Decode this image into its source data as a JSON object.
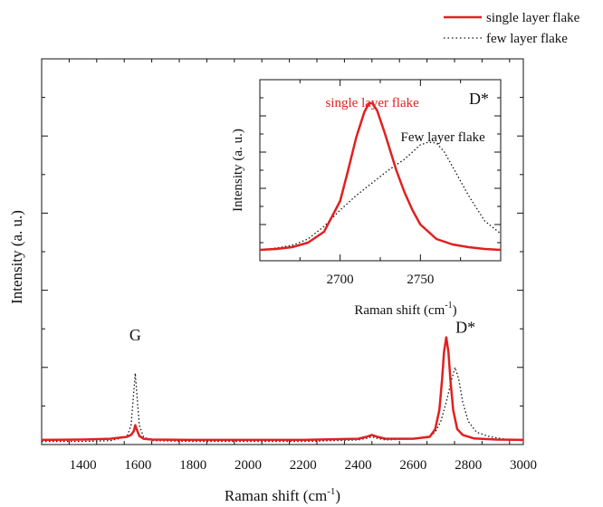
{
  "chart_data": [
    {
      "type": "line",
      "xlabel_base": "Raman shift (cm",
      "xlabel_sup": "-1",
      "xlabel_end": ")",
      "ylabel": "Intensity (a. u.)",
      "xlim": [
        1250,
        3000
      ],
      "ylim": [
        0,
        1.0
      ],
      "x_ticks": [
        1400,
        1600,
        1800,
        2000,
        2200,
        2400,
        2600,
        2800,
        3000
      ],
      "y_tick_labels_shown": false,
      "legend": {
        "placement": "top-right-outside"
      },
      "annotations": [
        {
          "text": "G",
          "x": 1590,
          "y": 0.27
        },
        {
          "text": "D*",
          "x": 2790,
          "y": 0.29
        }
      ],
      "series": [
        {
          "name": "single layer flake",
          "color": "#e02020",
          "style": "solid",
          "x": [
            1250,
            1400,
            1500,
            1560,
            1575,
            1585,
            1590,
            1595,
            1605,
            1620,
            1650,
            1800,
            2000,
            2200,
            2400,
            2430,
            2450,
            2470,
            2500,
            2600,
            2660,
            2680,
            2695,
            2705,
            2712,
            2720,
            2728,
            2735,
            2745,
            2760,
            2780,
            2820,
            2900,
            3000
          ],
          "y": [
            0.012,
            0.013,
            0.015,
            0.02,
            0.025,
            0.035,
            0.05,
            0.04,
            0.022,
            0.015,
            0.013,
            0.012,
            0.012,
            0.012,
            0.015,
            0.02,
            0.025,
            0.02,
            0.015,
            0.015,
            0.02,
            0.04,
            0.09,
            0.17,
            0.24,
            0.278,
            0.24,
            0.17,
            0.09,
            0.04,
            0.025,
            0.016,
            0.013,
            0.012
          ]
        },
        {
          "name": "few layer flake",
          "color": "#111111",
          "style": "dotted",
          "x": [
            1250,
            1400,
            1500,
            1560,
            1575,
            1583,
            1590,
            1597,
            1605,
            1620,
            1650,
            1800,
            2000,
            2200,
            2400,
            2430,
            2450,
            2470,
            2500,
            2600,
            2660,
            2680,
            2700,
            2720,
            2740,
            2752,
            2765,
            2780,
            2800,
            2830,
            2880,
            2950,
            3000
          ],
          "y": [
            0.008,
            0.008,
            0.01,
            0.02,
            0.05,
            0.12,
            0.185,
            0.12,
            0.05,
            0.02,
            0.01,
            0.008,
            0.008,
            0.008,
            0.012,
            0.016,
            0.02,
            0.016,
            0.012,
            0.015,
            0.022,
            0.032,
            0.06,
            0.11,
            0.17,
            0.2,
            0.17,
            0.11,
            0.06,
            0.032,
            0.02,
            0.012,
            0.01
          ]
        }
      ]
    },
    {
      "type": "line",
      "inset": true,
      "xlabel_base": "Raman shift (cm",
      "xlabel_sup": "-1",
      "xlabel_end": ")",
      "ylabel": "Intensity (a. u.)",
      "xlim": [
        2650,
        2800
      ],
      "ylim": [
        0,
        1.0
      ],
      "x_ticks": [
        2700,
        2750
      ],
      "y_tick_labels_shown": false,
      "annotations": [
        {
          "text": "D*",
          "position": "top-right"
        },
        {
          "text": "single layer flake",
          "color": "#e02020",
          "x": 2720,
          "y": 0.85
        },
        {
          "text": "Few layer flake",
          "x": 2764,
          "y": 0.66
        }
      ],
      "series": [
        {
          "name": "single layer flake",
          "color": "#e02020",
          "style": "solid",
          "x": [
            2650,
            2660,
            2670,
            2680,
            2690,
            2700,
            2705,
            2710,
            2715,
            2718,
            2720,
            2723,
            2728,
            2735,
            2740,
            2745,
            2750,
            2760,
            2770,
            2780,
            2790,
            2800
          ],
          "y": [
            0.06,
            0.065,
            0.075,
            0.1,
            0.16,
            0.33,
            0.5,
            0.68,
            0.82,
            0.87,
            0.87,
            0.83,
            0.7,
            0.5,
            0.38,
            0.28,
            0.2,
            0.12,
            0.09,
            0.075,
            0.065,
            0.06
          ]
        },
        {
          "name": "few layer flake",
          "color": "#111111",
          "style": "dotted",
          "x": [
            2650,
            2660,
            2670,
            2680,
            2690,
            2700,
            2710,
            2720,
            2730,
            2740,
            2750,
            2755,
            2760,
            2765,
            2770,
            2780,
            2790,
            2800
          ],
          "y": [
            0.06,
            0.07,
            0.085,
            0.12,
            0.19,
            0.28,
            0.36,
            0.43,
            0.5,
            0.56,
            0.64,
            0.655,
            0.65,
            0.6,
            0.52,
            0.36,
            0.22,
            0.15
          ]
        }
      ]
    }
  ]
}
